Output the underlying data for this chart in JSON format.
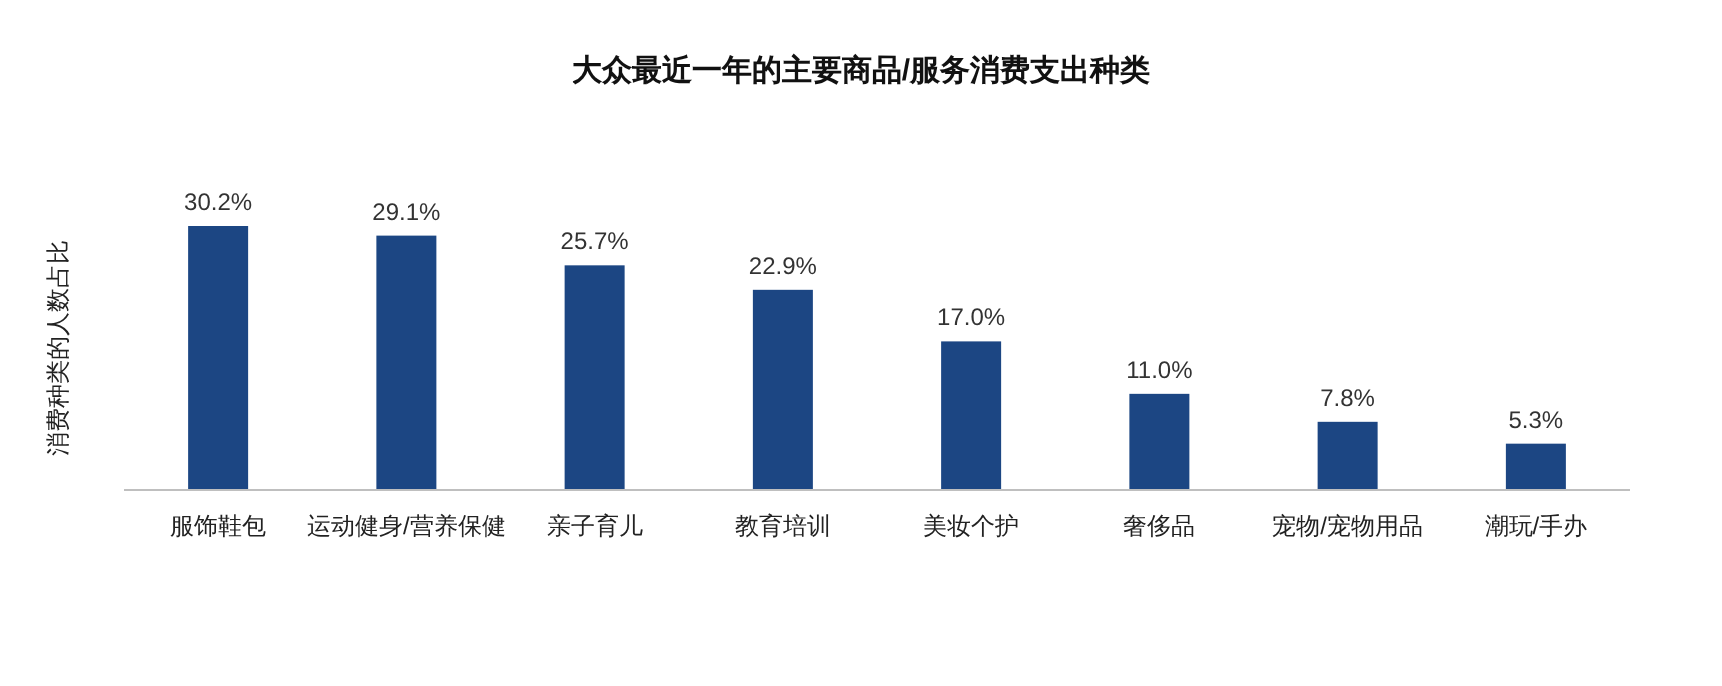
{
  "chart_data": {
    "type": "bar",
    "title": "大众最近一年的主要商品/服务消费支出种类",
    "ylabel": "消费种类的人数占比",
    "categories": [
      "服饰鞋包",
      "运动健身/营养保健",
      "亲子育儿",
      "教育培训",
      "美妆个护",
      "奢侈品",
      "宠物/宠物用品",
      "潮玩/手办"
    ],
    "values": [
      30.2,
      29.1,
      25.7,
      22.9,
      17.0,
      11.0,
      7.8,
      5.3
    ],
    "value_labels": [
      "30.2%",
      "29.1%",
      "25.7%",
      "22.9%",
      "17.0%",
      "11.0%",
      "7.8%",
      "5.3%"
    ],
    "color": "#1c4683"
  }
}
